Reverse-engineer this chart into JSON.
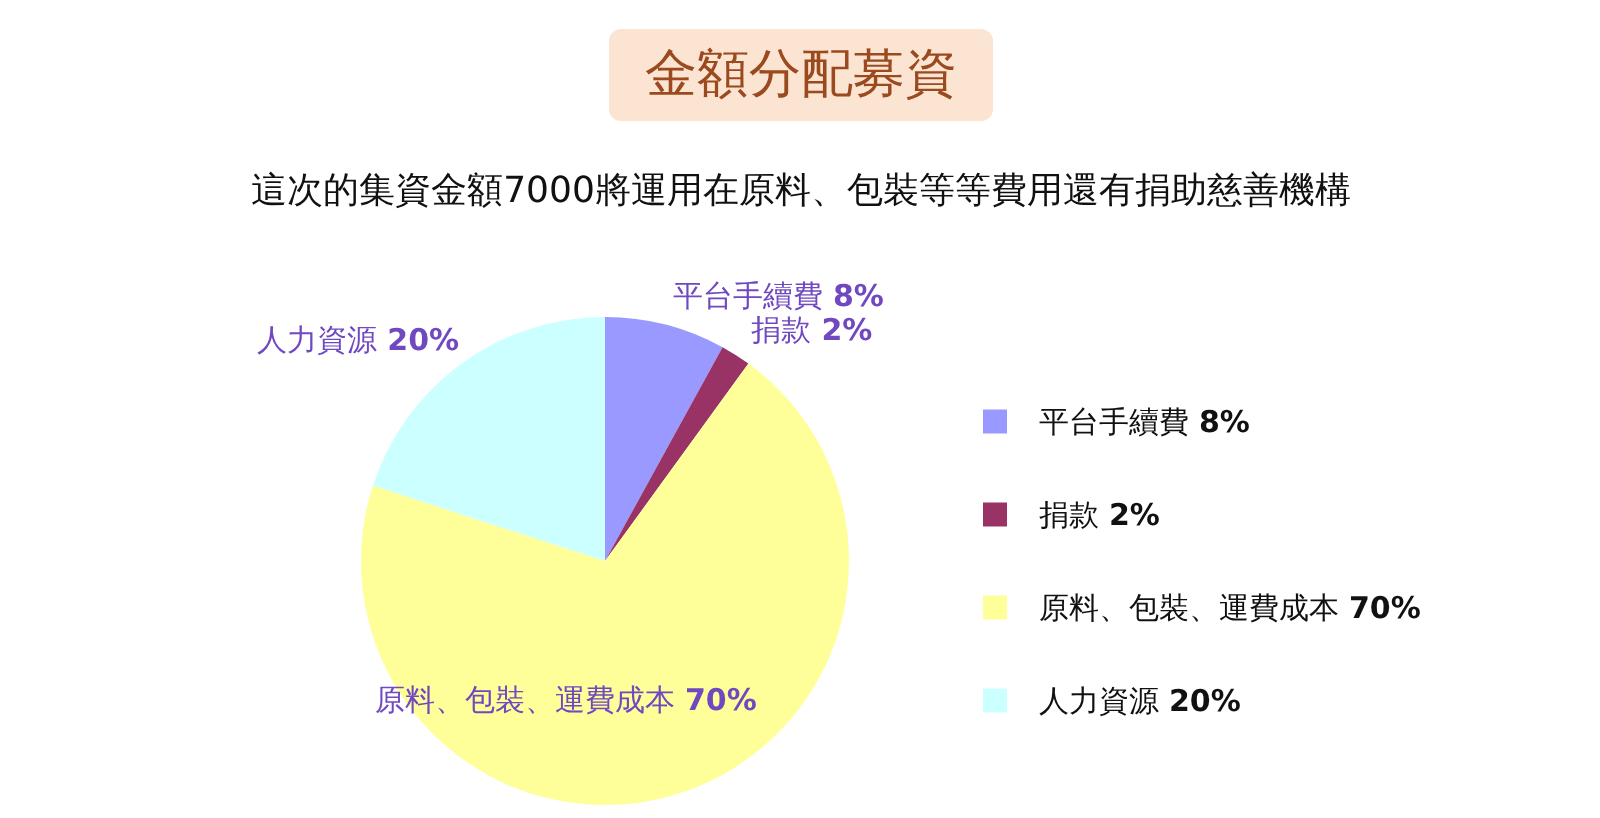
{
  "chart_data": {
    "type": "pie",
    "title": "金額分配募資",
    "subtitle": "這次的集資金額7000將運用在原料、包裝等等費用還有捐助慈善機構",
    "categories": [
      "平台手續費",
      "捐款",
      "原料、包裝、運費成本",
      "人力資源"
    ],
    "values": [
      8,
      2,
      70,
      20
    ],
    "colors": [
      "#9999ff",
      "#993366",
      "#ffff99",
      "#ccffff"
    ],
    "value_labels": [
      "8%",
      "2%",
      "70%",
      "20%"
    ],
    "data_labels": true,
    "legend": "right"
  }
}
